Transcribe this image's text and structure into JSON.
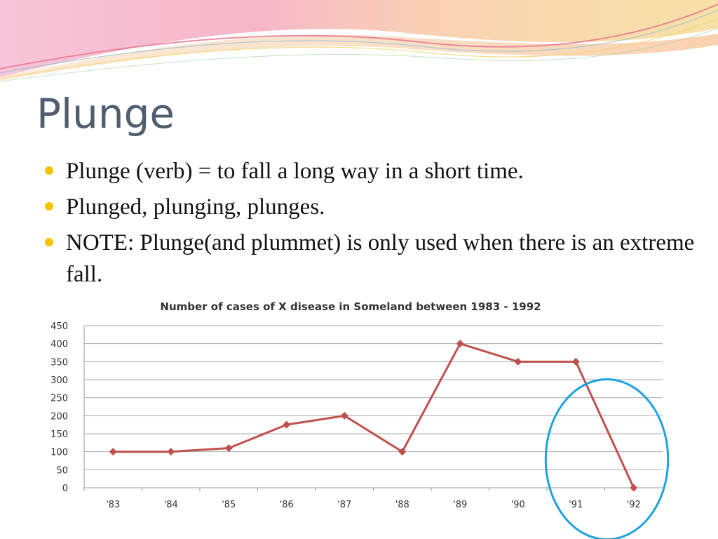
{
  "slide": {
    "title": "Plunge",
    "bullets": [
      "Plunge (verb) = to fall a long way in a short time.",
      "Plunged, plunging, plunges.",
      "NOTE: Plunge(and plummet) is only used when there is an extreme fall."
    ]
  },
  "colors": {
    "bullet": "#f5c200",
    "title": "#4f5d6e",
    "series_line": "#c0504d",
    "highlight_circle": "#1ea3e0"
  },
  "chart_data": {
    "type": "line",
    "title": "Number of cases of X disease in Someland between 1983  - 1992",
    "categories": [
      "'83",
      "'84",
      "'85",
      "'86",
      "'87",
      "'88",
      "'89",
      "'90",
      "'91",
      "'92"
    ],
    "series": [
      {
        "values": [
          100,
          100,
          110,
          175,
          200,
          100,
          400,
          350,
          350,
          0
        ]
      }
    ],
    "ylim": [
      0,
      450
    ],
    "yticks": [
      0,
      50,
      100,
      150,
      200,
      250,
      300,
      350,
      400,
      450
    ],
    "grid": true,
    "annotations": [
      {
        "type": "ellipse",
        "around_categories": [
          "'91",
          "'92"
        ]
      }
    ]
  }
}
